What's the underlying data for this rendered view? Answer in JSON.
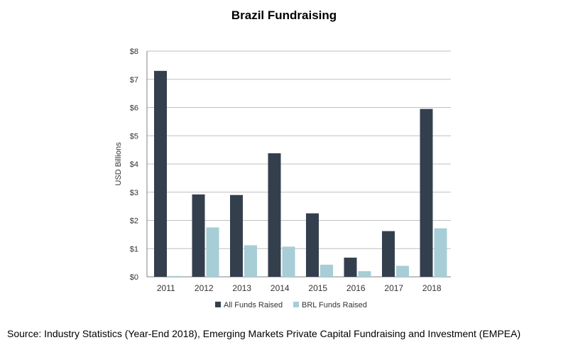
{
  "title": "Brazil Fundraising",
  "source": "Source: Industry Statistics (Year-End 2018), Emerging Markets Private Capital Fundraising and Investment (EMPEA)",
  "chart_data": {
    "type": "bar",
    "title": "Brazil Fundraising",
    "xlabel": "",
    "ylabel": "USD Billions",
    "ylim": [
      0,
      8
    ],
    "yticks": [
      0,
      1,
      2,
      3,
      4,
      5,
      6,
      7,
      8
    ],
    "ytick_labels": [
      "$0",
      "$1",
      "$2",
      "$3",
      "$4",
      "$5",
      "$6",
      "$7",
      "$8"
    ],
    "categories": [
      "2011",
      "2012",
      "2013",
      "2014",
      "2015",
      "2016",
      "2017",
      "2018"
    ],
    "series": [
      {
        "name": "All Funds Raised",
        "color": "#343f4e",
        "values": [
          7.3,
          2.92,
          2.9,
          4.38,
          2.25,
          0.68,
          1.62,
          5.95
        ]
      },
      {
        "name": "BRL Funds Raised",
        "color": "#a7cdd6",
        "values": [
          0.03,
          1.75,
          1.12,
          1.07,
          0.43,
          0.2,
          0.39,
          1.72
        ]
      }
    ],
    "grid": true,
    "legend_position": "bottom"
  }
}
